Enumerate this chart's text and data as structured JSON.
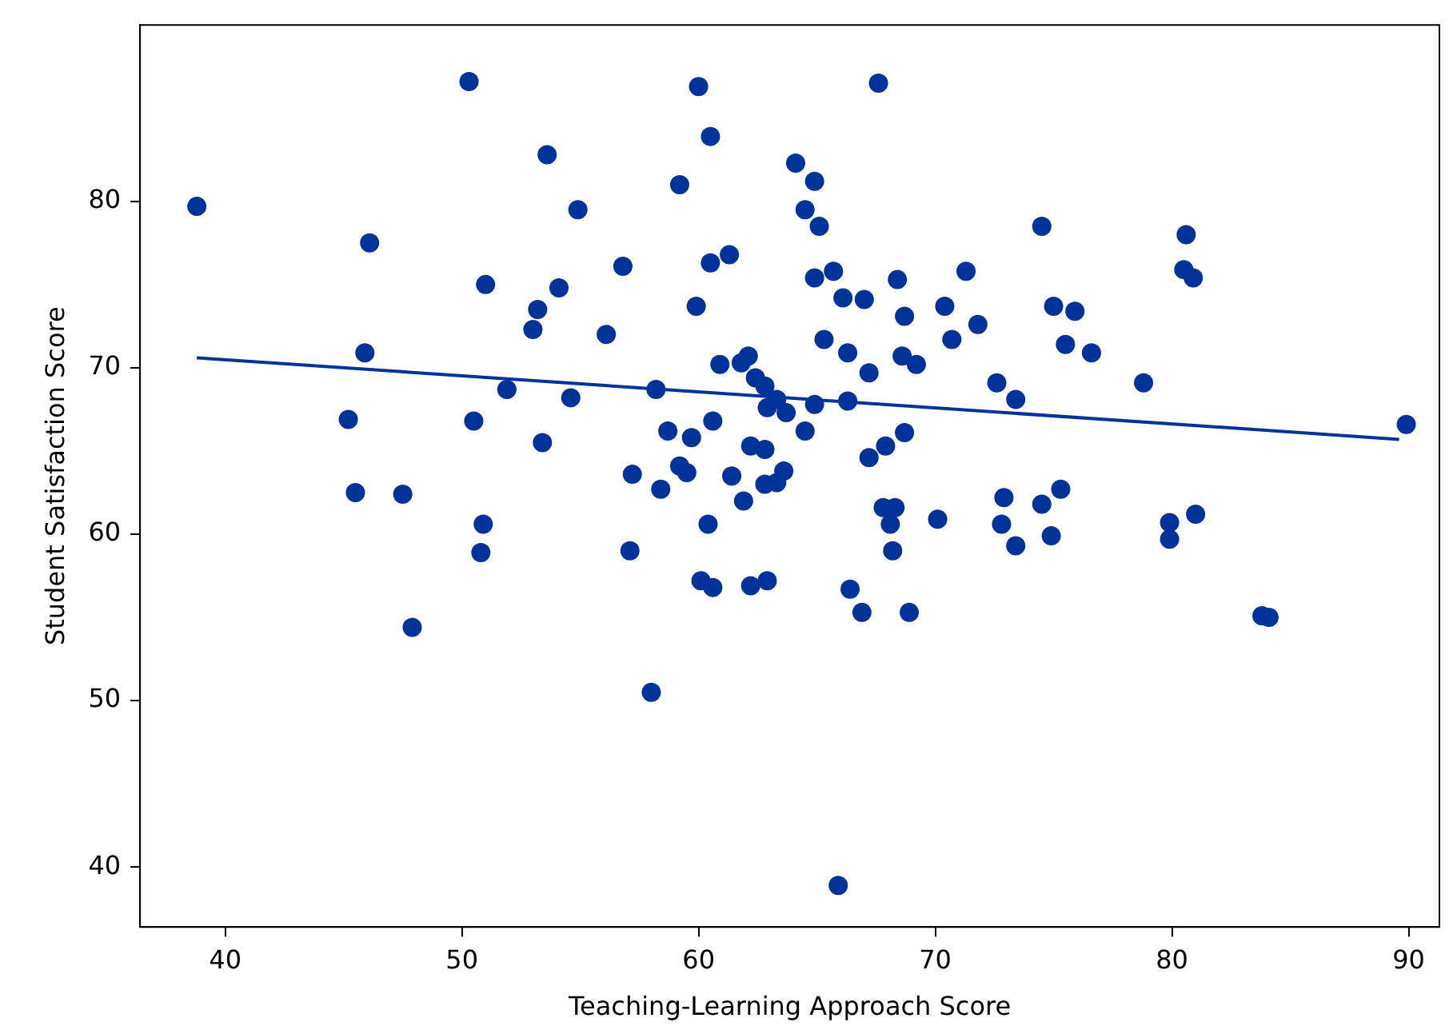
{
  "chart_data": {
    "type": "scatter",
    "xlabel": "Teaching-Learning Approach Score",
    "ylabel": "Student Satisfaction Score",
    "xlim": [
      36.4,
      91.3
    ],
    "ylim": [
      36.4,
      90.6
    ],
    "xticks": [
      40,
      50,
      60,
      70,
      80,
      90
    ],
    "yticks": [
      40,
      50,
      60,
      70,
      80
    ],
    "grid": false,
    "legend": false,
    "series": [
      {
        "color": "#00339a",
        "marker": "circle",
        "x": [
          38.8,
          45.2,
          45.5,
          46.1,
          45.9,
          47.5,
          47.9,
          50.3,
          50.5,
          51.0,
          50.9,
          50.8,
          51.9,
          53.0,
          53.2,
          53.6,
          53.4,
          54.1,
          54.6,
          54.9,
          56.1,
          56.8,
          57.2,
          57.1,
          58.0,
          58.2,
          58.4,
          58.7,
          59.2,
          59.2,
          59.5,
          59.7,
          59.9,
          60.0,
          60.1,
          60.4,
          60.5,
          60.5,
          60.6,
          60.6,
          60.9,
          61.3,
          61.4,
          61.8,
          61.9,
          62.1,
          62.2,
          62.2,
          62.4,
          62.8,
          62.9,
          62.8,
          62.9,
          62.8,
          63.3,
          63.6,
          63.3,
          63.7,
          64.1,
          64.5,
          64.5,
          64.9,
          64.9,
          65.1,
          64.9,
          65.3,
          65.7,
          65.9,
          66.1,
          66.3,
          66.3,
          66.4,
          66.9,
          67.0,
          67.2,
          67.2,
          67.6,
          67.8,
          67.9,
          68.1,
          68.3,
          68.2,
          68.4,
          68.6,
          68.7,
          68.7,
          68.9,
          69.2,
          70.1,
          70.4,
          70.7,
          71.3,
          71.8,
          72.6,
          72.8,
          72.9,
          73.4,
          73.4,
          74.5,
          74.5,
          74.9,
          75.0,
          75.3,
          75.5,
          75.9,
          76.6,
          78.8,
          79.9,
          79.9,
          80.5,
          80.6,
          80.9,
          81.0,
          83.8,
          84.1,
          89.9
        ],
        "values": [
          79.7,
          66.9,
          62.5,
          77.5,
          70.9,
          62.4,
          54.4,
          87.2,
          66.8,
          75.0,
          60.6,
          58.9,
          68.7,
          72.3,
          73.5,
          82.8,
          65.5,
          74.8,
          68.2,
          79.5,
          72.0,
          76.1,
          63.6,
          59.0,
          50.5,
          68.7,
          62.7,
          66.2,
          81.0,
          64.1,
          63.7,
          65.8,
          73.7,
          86.9,
          57.2,
          60.6,
          83.9,
          76.3,
          66.8,
          56.8,
          70.2,
          76.8,
          63.5,
          70.3,
          62.0,
          70.7,
          65.3,
          56.9,
          69.4,
          68.9,
          67.6,
          65.1,
          57.2,
          63.0,
          63.1,
          63.8,
          68.1,
          67.3,
          82.3,
          79.5,
          66.2,
          75.4,
          81.2,
          78.5,
          67.8,
          71.7,
          75.8,
          38.9,
          74.2,
          70.9,
          68.0,
          56.7,
          55.3,
          74.1,
          69.7,
          64.6,
          87.1,
          61.6,
          65.3,
          60.6,
          61.6,
          59.0,
          75.3,
          70.7,
          73.1,
          66.1,
          55.3,
          70.2,
          60.9,
          73.7,
          71.7,
          75.8,
          72.6,
          69.1,
          60.6,
          62.2,
          68.1,
          59.3,
          78.5,
          61.8,
          59.9,
          73.7,
          62.7,
          71.4,
          73.4,
          70.9,
          69.1,
          59.7,
          60.7,
          75.9,
          78.0,
          75.4,
          61.2,
          55.1,
          55.0,
          66.6
        ]
      },
      {
        "type": "line",
        "marker": "none",
        "color": "#00339a",
        "x": [
          38.8,
          89.6
        ],
        "values": [
          70.6,
          65.7
        ]
      }
    ]
  }
}
